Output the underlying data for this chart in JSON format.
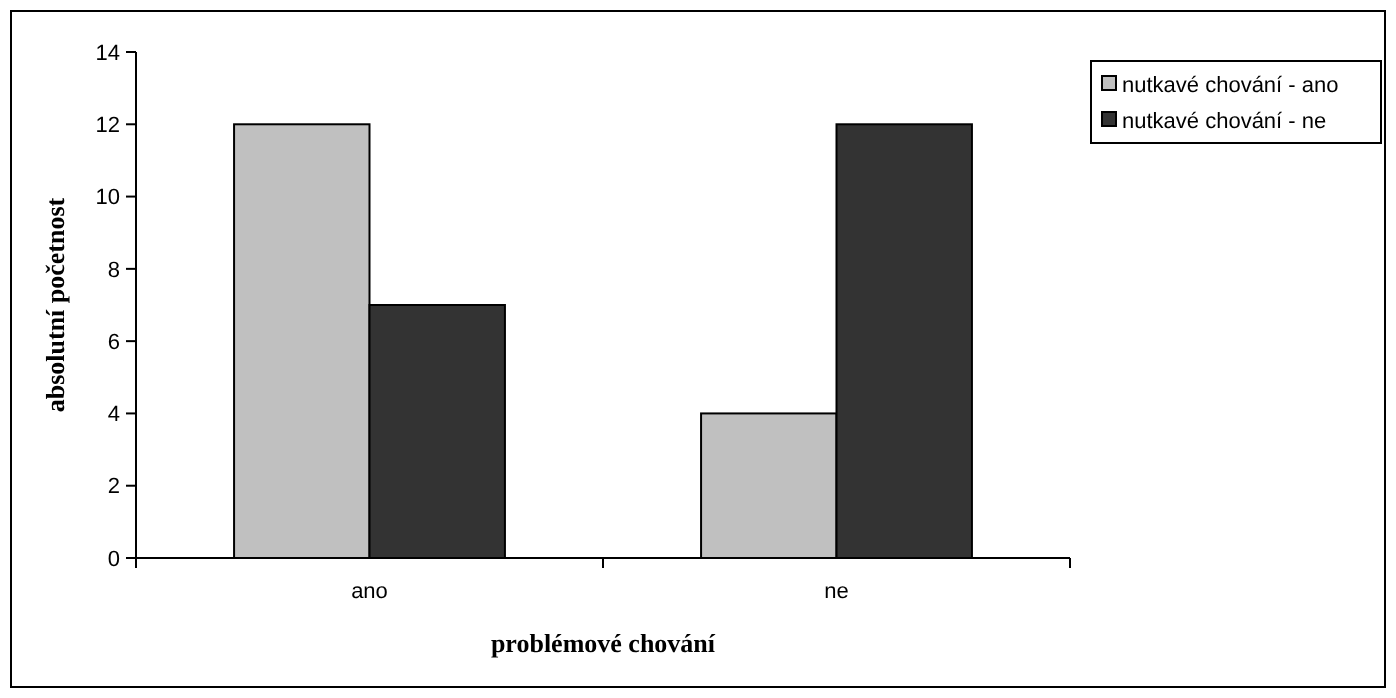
{
  "chart_data": {
    "type": "bar",
    "xlabel": "problémové chování",
    "ylabel": "absolutní početnost",
    "categories": [
      "ano",
      "ne"
    ],
    "series": [
      {
        "name": "nutkavé chování - ano",
        "color": "#c0c0c0",
        "values": [
          12,
          4
        ]
      },
      {
        "name": "nutkavé chování - ne",
        "color": "#333333",
        "values": [
          7,
          12
        ]
      }
    ],
    "ylim": [
      0,
      14
    ],
    "yticks": [
      0,
      2,
      4,
      6,
      8,
      10,
      12,
      14
    ],
    "grid": false,
    "legend": "top right"
  }
}
